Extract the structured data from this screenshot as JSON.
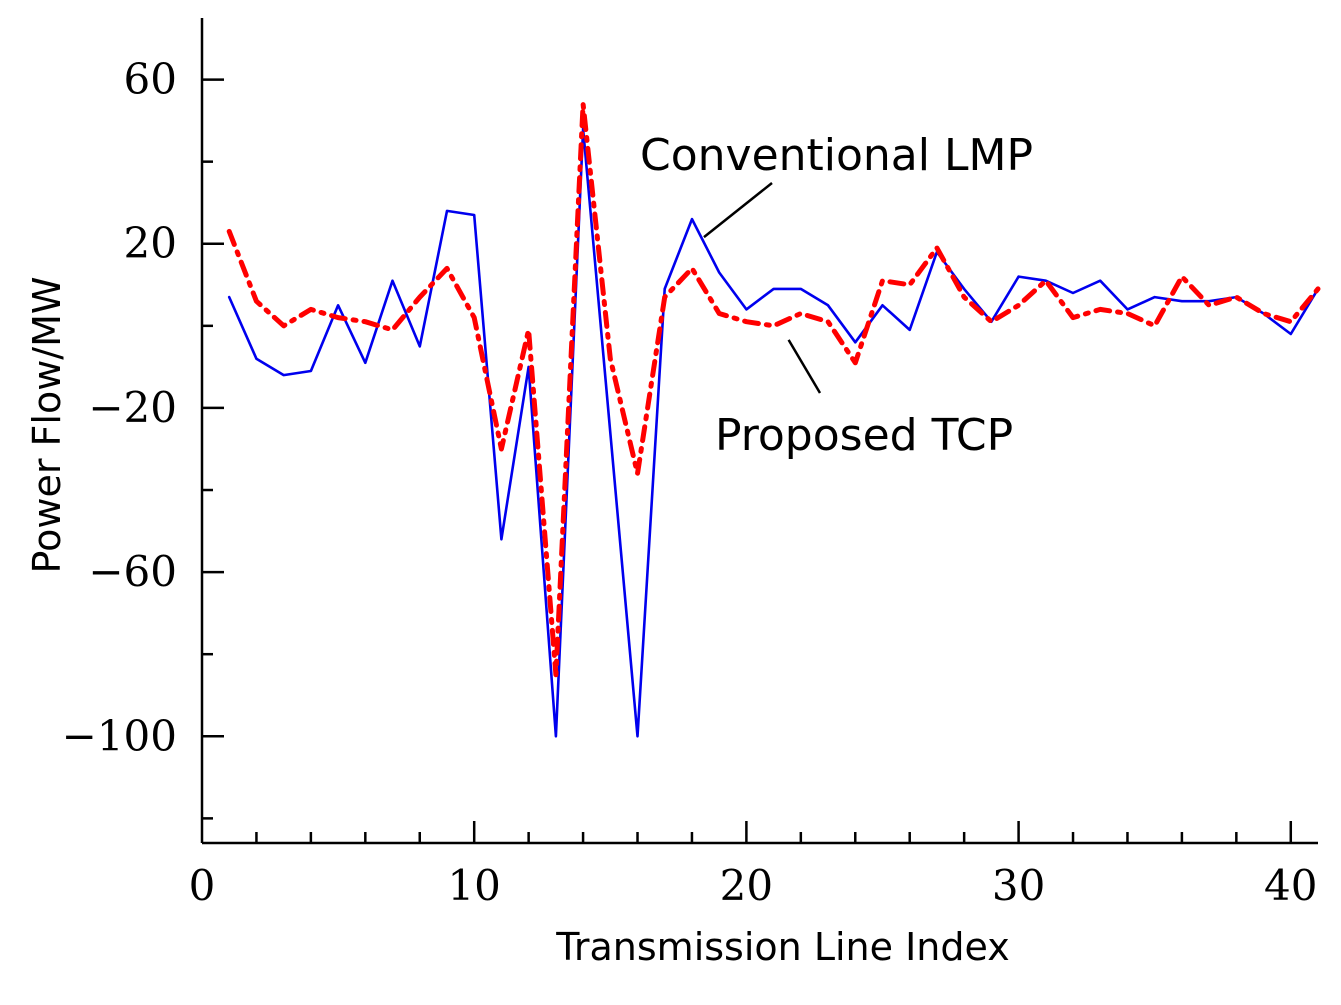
{
  "chart_data": {
    "type": "line",
    "title": "",
    "xlabel": "Transmission Line Index",
    "ylabel": "Power Flow/MW",
    "xlim": [
      0,
      41
    ],
    "ylim": [
      -126,
      75
    ],
    "x_ticks": [
      0,
      10,
      20,
      30,
      40
    ],
    "x_tick_labels": [
      "0",
      "10",
      "20",
      "30",
      "40"
    ],
    "x_minor_step": 2,
    "y_ticks": [
      60,
      20,
      -20,
      -60,
      -100
    ],
    "y_tick_labels": [
      "60",
      "20",
      "−20",
      "−60",
      "−100"
    ],
    "y_minor_step": 20,
    "grid": false,
    "x": [
      1,
      2,
      3,
      4,
      5,
      6,
      7,
      8,
      9,
      10,
      11,
      12,
      13,
      14,
      15,
      16,
      17,
      18,
      19,
      20,
      21,
      22,
      23,
      24,
      25,
      26,
      27,
      28,
      29,
      30,
      31,
      32,
      33,
      34,
      35,
      36,
      37,
      38,
      39,
      40,
      41
    ],
    "series": [
      {
        "name": "Conventional LMP",
        "color": "#0000ee",
        "style": "solid",
        "values": [
          7,
          -8,
          -12,
          -11,
          5,
          -9,
          11,
          -5,
          28,
          27,
          -52,
          -10,
          -100,
          48,
          -26,
          -100,
          9,
          26,
          13,
          4,
          9,
          9,
          5,
          -4,
          5,
          -1,
          18,
          9,
          1,
          12,
          11,
          8,
          11,
          4,
          7,
          6,
          6,
          7,
          3,
          -2,
          9
        ]
      },
      {
        "name": "Proposed TCP",
        "color": "#ff0000",
        "style": "dashdot",
        "values": [
          23,
          6,
          0,
          4,
          2,
          1,
          -1,
          7,
          14,
          2,
          -30,
          -1,
          -85,
          54,
          -8,
          -36,
          7,
          14,
          3,
          1,
          0,
          3,
          1,
          -9,
          11,
          10,
          19,
          7,
          1,
          5,
          11,
          2,
          4,
          3,
          0,
          12,
          5,
          7,
          3,
          1,
          9
        ]
      }
    ],
    "annotations": [
      {
        "text": "Conventional LMP",
        "series": 0,
        "x": 18
      },
      {
        "text": "Proposed TCP",
        "series": 1,
        "x": 21
      }
    ]
  }
}
